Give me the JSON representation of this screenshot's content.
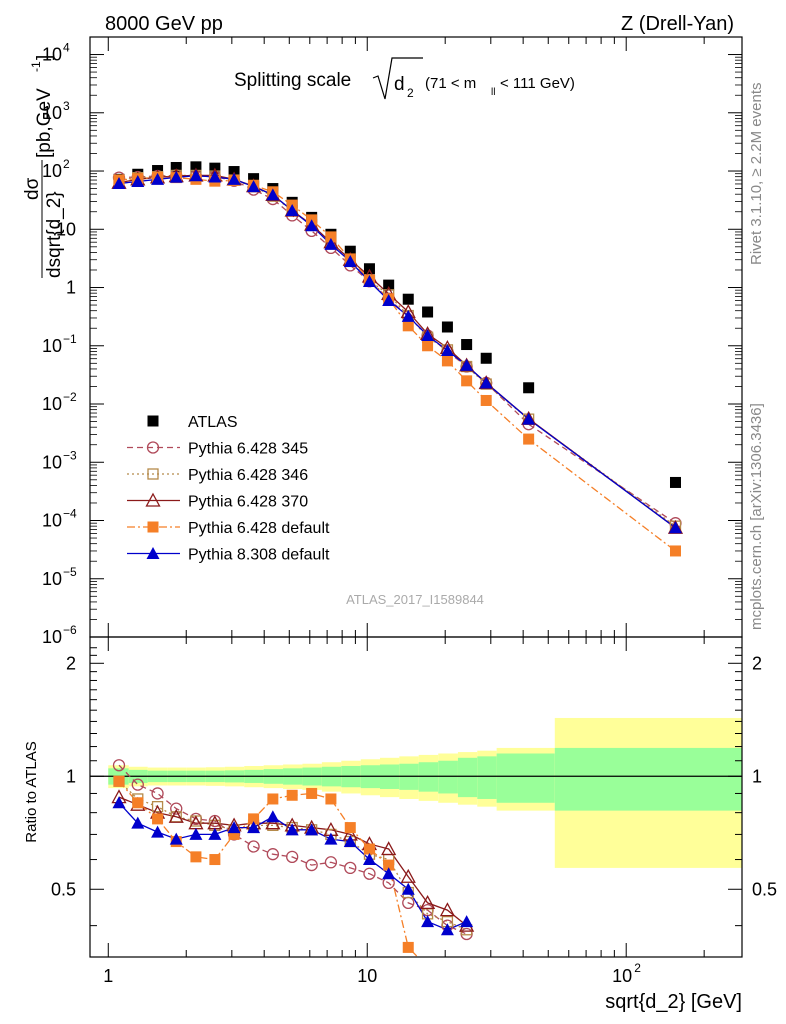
{
  "header": {
    "left": "8000 GeV pp",
    "right": "Z (Drell-Yan)"
  },
  "side_labels": {
    "rivet": "Rivet 3.1.10, ≥ 2.2M events",
    "mcplots": "mcplots.cern.ch [arXiv:1306.3436]"
  },
  "chart_data": [
    {
      "type": "scatter",
      "title": "Splitting scale √d₂ (71 < mₗₗ < 111 GeV)",
      "title_main": "Splitting scale",
      "title_sym": "d",
      "title_sub": "2",
      "title_range_pre": "(71 < m",
      "title_range_sub": "ll",
      "title_range_post": " < 111 GeV)",
      "ylabel": "dσ / dsqrt{d_2} [pb,GeV⁻¹]",
      "ylabel_num": "dσ",
      "ylabel_den": "dsqrt{d_2}",
      "ylabel_unit": "[pb,GeV",
      "ylabel_unit_sup": "-1",
      "ylabel_unit_close": "]",
      "xscale": "log",
      "yscale": "log",
      "xlim": [
        0.85,
        280
      ],
      "ylim": [
        1e-06,
        20000
      ],
      "watermark": "ATLAS_2017_I1589844",
      "legend_position": "bottom-left",
      "x": [
        1.1,
        1.3,
        1.55,
        1.83,
        2.18,
        2.58,
        3.06,
        3.64,
        4.32,
        5.13,
        6.1,
        7.24,
        8.6,
        10.2,
        12.1,
        14.4,
        17.1,
        20.4,
        24.2,
        28.8,
        42.0,
        155.0
      ],
      "series": [
        {
          "name": "ATLAS",
          "color": "#000000",
          "marker": "square-filled",
          "line": "none",
          "values": [
            72,
            88,
            102,
            115,
            118,
            112,
            98,
            74,
            50,
            29,
            16,
            8.2,
            4.2,
            2.1,
            1.1,
            0.63,
            0.38,
            0.21,
            0.105,
            0.061,
            0.019,
            0.00045
          ]
        },
        {
          "name": "Pythia 6.428 345",
          "color": "#b04a5a",
          "marker": "circle-open",
          "line": "dashed",
          "values": [
            77,
            79,
            82,
            84,
            82,
            80,
            68,
            48,
            33,
            17.3,
            9.4,
            4.8,
            2.4,
            1.28,
            0.64,
            0.32,
            0.15,
            0.08,
            0.044,
            0.023,
            0.0045,
            9e-05
          ]
        },
        {
          "name": "Pythia 6.428 346",
          "color": "#b58a4a",
          "marker": "square-open",
          "line": "dotted",
          "values": [
            70,
            77,
            80,
            84,
            84,
            82,
            70,
            54,
            37,
            21,
            12,
            5.7,
            2.8,
            1.32,
            0.75,
            0.33,
            0.14,
            0.085,
            0.044,
            0.022,
            0.0055,
            8e-05
          ]
        },
        {
          "name": "Pythia 6.428 370",
          "color": "#8b1a1a",
          "marker": "triangle-open",
          "line": "solid",
          "values": [
            63,
            72,
            78,
            82,
            84,
            84,
            72,
            55,
            39,
            21,
            12,
            6.0,
            3.0,
            1.55,
            0.78,
            0.38,
            0.16,
            0.092,
            0.046,
            0.023,
            0.0056,
            7.5e-05
          ]
        },
        {
          "name": "Pythia 6.428 default",
          "color": "#f57f27",
          "marker": "square-filled",
          "line": "dashdot",
          "values": [
            70,
            74,
            78,
            77,
            72,
            67,
            69,
            57,
            44,
            26,
            14.5,
            7.4,
            3.1,
            1.35,
            0.64,
            0.22,
            0.1,
            0.055,
            0.025,
            0.0115,
            0.0025,
            3e-05
          ]
        },
        {
          "name": "Pythia 8.308 default",
          "color": "#0000cc",
          "marker": "triangle-filled",
          "line": "solid",
          "values": [
            61,
            66,
            72,
            78,
            83,
            79,
            72,
            54,
            39,
            21,
            11.5,
            5.5,
            2.8,
            1.27,
            0.6,
            0.32,
            0.15,
            0.083,
            0.046,
            0.023,
            0.0055,
            7.5e-05
          ]
        }
      ]
    },
    {
      "type": "line",
      "ylabel": "Ratio to ATLAS",
      "xlabel": "sqrt{d_2} [GeV]",
      "xscale": "log",
      "xlim": [
        0.85,
        280
      ],
      "ylim": [
        0.33,
        2.35
      ],
      "y_ticks": [
        0.5,
        1,
        2
      ],
      "x_ticks": [
        1,
        10,
        100
      ],
      "bands": {
        "bin_edges": [
          1,
          1.2,
          1.42,
          1.69,
          2.0,
          2.38,
          2.82,
          3.35,
          3.98,
          4.73,
          5.62,
          6.68,
          7.94,
          9.44,
          11.2,
          13.3,
          15.8,
          18.8,
          22.4,
          26.6,
          31.6,
          53.0,
          280
        ],
        "green_half": [
          0.05,
          0.04,
          0.035,
          0.035,
          0.035,
          0.035,
          0.037,
          0.04,
          0.045,
          0.05,
          0.055,
          0.06,
          0.065,
          0.07,
          0.075,
          0.08,
          0.09,
          0.1,
          0.12,
          0.13,
          0.15,
          0.19
        ],
        "yellow_half": [
          0.07,
          0.06,
          0.055,
          0.055,
          0.055,
          0.057,
          0.06,
          0.065,
          0.07,
          0.075,
          0.08,
          0.09,
          0.1,
          0.11,
          0.12,
          0.13,
          0.14,
          0.15,
          0.16,
          0.17,
          0.19,
          0.43
        ]
      },
      "x": [
        1.1,
        1.3,
        1.55,
        1.83,
        2.18,
        2.58,
        3.06,
        3.64,
        4.32,
        5.13,
        6.1,
        7.24,
        8.6,
        10.2,
        12.1,
        14.4,
        17.1,
        20.4,
        24.2
      ],
      "series": [
        {
          "name": "Pythia 6.428 345",
          "color": "#b04a5a",
          "marker": "circle-open",
          "line": "dashed",
          "values": [
            1.07,
            0.95,
            0.9,
            0.82,
            0.77,
            0.76,
            0.7,
            0.65,
            0.62,
            0.61,
            0.58,
            0.59,
            0.57,
            0.55,
            0.52,
            0.46,
            0.44,
            0.4,
            0.38
          ]
        },
        {
          "name": "Pythia 6.428 346",
          "color": "#b58a4a",
          "marker": "square-open",
          "line": "dotted",
          "values": [
            0.97,
            0.87,
            0.83,
            0.78,
            0.76,
            0.74,
            0.72,
            0.74,
            0.74,
            0.73,
            0.72,
            0.7,
            0.67,
            0.62,
            0.6,
            0.49,
            0.43,
            0.41,
            0.39
          ]
        },
        {
          "name": "Pythia 6.428 370",
          "color": "#8b1a1a",
          "marker": "triangle-open",
          "line": "solid",
          "values": [
            0.88,
            0.84,
            0.8,
            0.78,
            0.75,
            0.75,
            0.74,
            0.75,
            0.75,
            0.74,
            0.73,
            0.72,
            0.7,
            0.66,
            0.64,
            0.54,
            0.46,
            0.44,
            0.4
          ]
        },
        {
          "name": "Pythia 6.428 default",
          "color": "#f57f27",
          "marker": "square-filled",
          "line": "dashdot",
          "values": [
            0.97,
            0.85,
            0.77,
            0.67,
            0.61,
            0.6,
            0.7,
            0.77,
            0.87,
            0.89,
            0.9,
            0.87,
            0.73,
            0.64,
            0.58,
            0.35,
            0.31,
            0.28,
            0.26
          ]
        },
        {
          "name": "Pythia 8.308 default",
          "color": "#0000cc",
          "marker": "triangle-filled",
          "line": "solid",
          "values": [
            0.85,
            0.75,
            0.71,
            0.68,
            0.7,
            0.7,
            0.73,
            0.73,
            0.78,
            0.72,
            0.72,
            0.68,
            0.67,
            0.6,
            0.55,
            0.5,
            0.41,
            0.39,
            0.41
          ]
        }
      ]
    }
  ]
}
